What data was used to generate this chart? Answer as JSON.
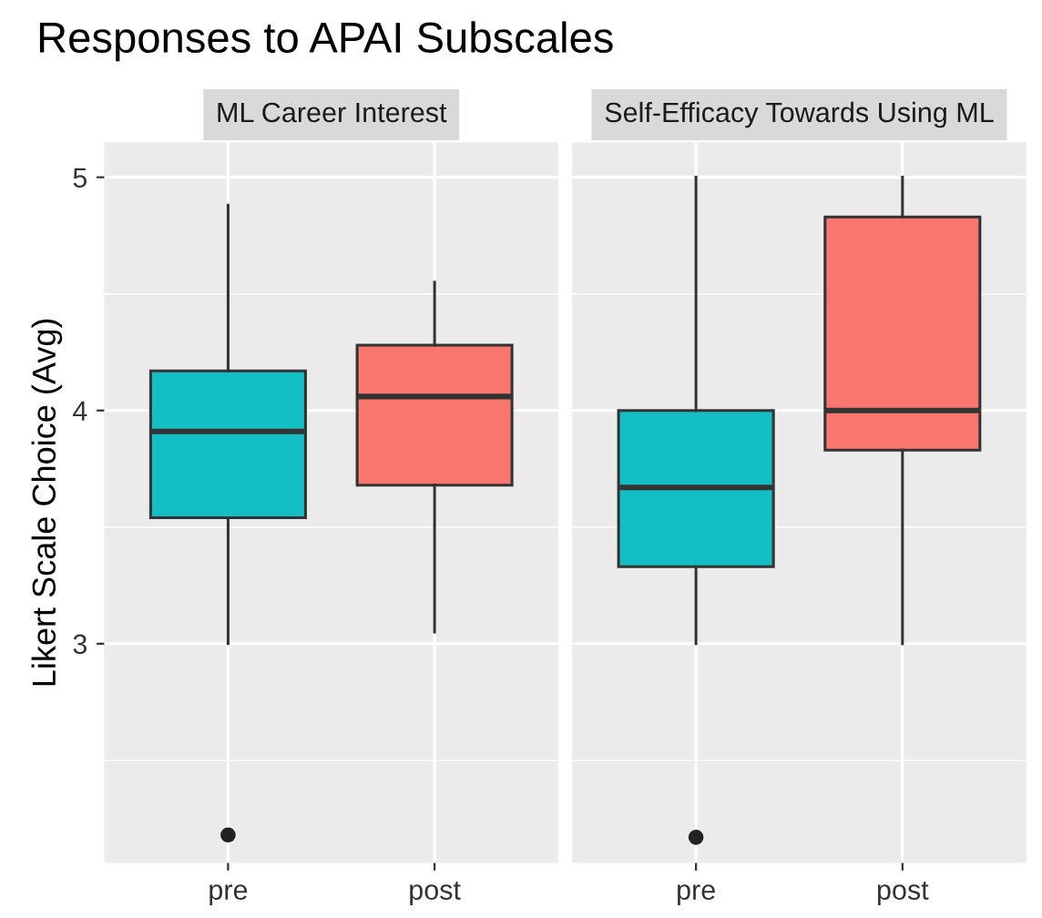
{
  "chart_data": [
    {
      "type": "box",
      "title": "Responses to APAI Subscales",
      "subtitle": "ML Career Interest",
      "ylabel": "Likert Scale Choice (Avg)",
      "categories": [
        "pre",
        "post"
      ],
      "colors": [
        "#13bec4",
        "#f8766d"
      ],
      "boxes": [
        {
          "low": 3.0,
          "q1": 3.54,
          "median": 3.91,
          "q3": 4.17,
          "high": 4.88,
          "outliers": [
            2.18
          ]
        },
        {
          "low": 3.05,
          "q1": 3.68,
          "median": 4.06,
          "q3": 4.28,
          "high": 4.55
        }
      ],
      "ylim": [
        2.06,
        5.15
      ],
      "yticks": [
        3,
        4,
        5
      ],
      "grid": true
    },
    {
      "type": "box",
      "subtitle": "Self-Efficacy Towards Using ML",
      "categories": [
        "pre",
        "post"
      ],
      "colors": [
        "#13bec4",
        "#f8766d"
      ],
      "boxes": [
        {
          "low": 3.0,
          "q1": 3.33,
          "median": 3.67,
          "q3": 4.0,
          "high": 5.0,
          "outliers": [
            2.17
          ]
        },
        {
          "low": 3.0,
          "q1": 3.83,
          "median": 4.0,
          "q3": 4.83,
          "high": 5.0
        }
      ],
      "ylim": [
        2.06,
        5.15
      ],
      "yticks": [
        3,
        4,
        5
      ],
      "grid": true,
      "tick_labels": "x"
    }
  ]
}
